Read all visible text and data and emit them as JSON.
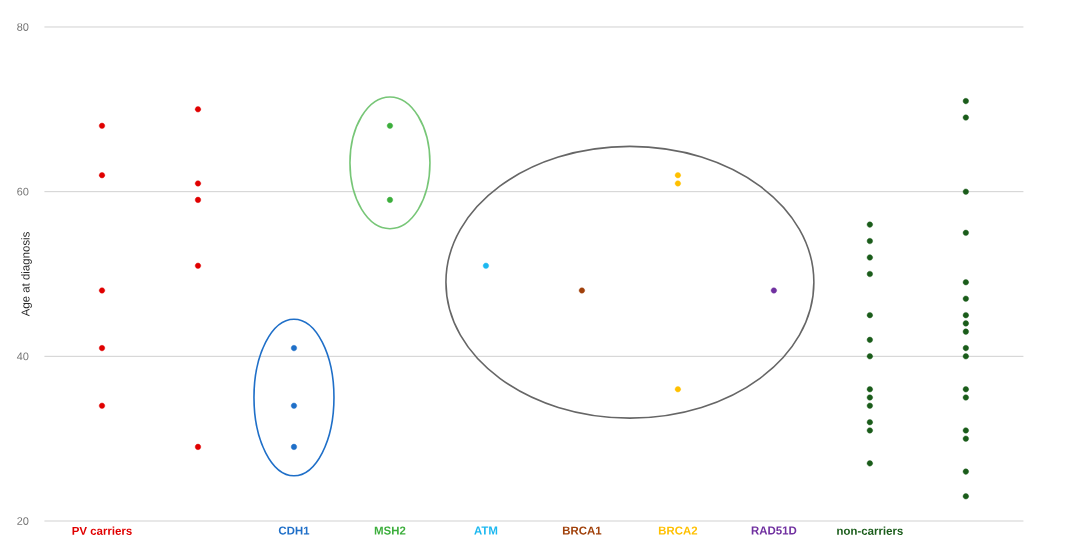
{
  "chart_data": {
    "type": "scatter",
    "ylabel": "Age at diagnosis",
    "categories": [
      "PV carriers",
      null,
      "CDH1",
      "MSH2",
      "ATM",
      "BRCA1",
      "BRCA2",
      "RAD51D",
      "non-carriers",
      null
    ],
    "ylim": [
      20,
      80
    ],
    "yticks": [
      20,
      40,
      60,
      80
    ],
    "grid": "y",
    "marker": "circle",
    "series": [
      {
        "colors": [
          "#e00000",
          "#e00000",
          "#1f6fc8",
          "#3cae3c",
          "#1cb8f0",
          "#a0400a",
          "#ffc000",
          "#7030a0",
          "#1a5c1a",
          "#1a5c1a"
        ],
        "values": [
          68,
          70,
          41,
          68,
          51,
          48,
          62,
          48,
          56,
          71
        ]
      },
      {
        "colors": [
          "#e00000",
          "#e00000",
          "#1f6fc8",
          "#3cae3c",
          "#1cb8f0",
          "#a0400a",
          "#ffc000",
          "#7030a0",
          "#1a5c1a",
          "#1a5c1a"
        ],
        "values": [
          62,
          61,
          34,
          59,
          null,
          null,
          61,
          null,
          54,
          69
        ]
      },
      {
        "colors": [
          "#e00000",
          "#e00000",
          "#1f6fc8",
          "#3cae3c",
          "#1cb8f0",
          "#a0400a",
          "#ffc000",
          "#7030a0",
          "#1a5c1a",
          "#1a5c1a"
        ],
        "values": [
          48,
          59,
          29,
          null,
          null,
          null,
          36,
          null,
          52,
          60
        ]
      },
      {
        "colors": [
          "#e00000",
          "#e00000",
          "#1f6fc8",
          "#3cae3c",
          "#1cb8f0",
          "#a0400a",
          "#ffc000",
          "#7030a0",
          "#1a5c1a",
          "#1a5c1a"
        ],
        "values": [
          41,
          51,
          null,
          null,
          null,
          null,
          null,
          null,
          50,
          55
        ]
      },
      {
        "colors": [
          "#e00000",
          "#e00000",
          "#1f6fc8",
          "#3cae3c",
          "#1cb8f0",
          "#a0400a",
          "#ffc000",
          "#7030a0",
          "#1a5c1a",
          "#1a5c1a"
        ],
        "values": [
          34,
          29,
          null,
          null,
          null,
          null,
          null,
          null,
          45,
          49
        ]
      },
      {
        "colors": [
          "#e00000",
          "#e00000",
          "#1f6fc8",
          "#3cae3c",
          "#1cb8f0",
          "#a0400a",
          "#ffc000",
          "#7030a0",
          "#1a5c1a",
          "#1a5c1a"
        ],
        "values": [
          null,
          null,
          null,
          null,
          null,
          null,
          null,
          null,
          42,
          47
        ]
      },
      {
        "colors": [
          "#e00000",
          "#e00000",
          "#1f6fc8",
          "#3cae3c",
          "#1cb8f0",
          "#a0400a",
          "#ffc000",
          "#7030a0",
          "#1a5c1a",
          "#1a5c1a"
        ],
        "values": [
          null,
          null,
          null,
          null,
          null,
          null,
          null,
          null,
          null,
          45
        ]
      },
      {
        "colors": [
          "#e00000",
          "#e00000",
          "#1f6fc8",
          "#3cae3c",
          "#1cb8f0",
          "#a0400a",
          "#ffc000",
          "#7030a0",
          "#1a5c1a",
          "#1a5c1a"
        ],
        "values": [
          null,
          null,
          null,
          null,
          null,
          null,
          null,
          null,
          40,
          44
        ]
      },
      {
        "colors": [
          "#e00000",
          "#e00000",
          "#1f6fc8",
          "#3cae3c",
          "#1cb8f0",
          "#a0400a",
          "#ffc000",
          "#7030a0",
          "#1a5c1a",
          "#1a5c1a"
        ],
        "values": [
          null,
          null,
          null,
          null,
          null,
          null,
          null,
          null,
          36,
          43
        ]
      },
      {
        "colors": [
          "#e00000",
          "#e00000",
          "#1f6fc8",
          "#3cae3c",
          "#1cb8f0",
          "#a0400a",
          "#ffc000",
          "#7030a0",
          "#1a5c1a",
          "#1a5c1a"
        ],
        "values": [
          null,
          null,
          null,
          null,
          null,
          null,
          null,
          null,
          35,
          41
        ]
      },
      {
        "colors": [
          "#e00000",
          "#e00000",
          "#1f6fc8",
          "#3cae3c",
          "#1cb8f0",
          "#a0400a",
          "#ffc000",
          "#7030a0",
          "#1a5c1a",
          "#1a5c1a"
        ],
        "values": [
          null,
          null,
          null,
          null,
          null,
          null,
          null,
          null,
          34,
          40
        ]
      },
      {
        "colors": [
          "#e00000",
          "#e00000",
          "#1f6fc8",
          "#3cae3c",
          "#1cb8f0",
          "#a0400a",
          "#ffc000",
          "#7030a0",
          "#1a5c1a",
          "#1a5c1a"
        ],
        "values": [
          null,
          null,
          null,
          null,
          null,
          null,
          null,
          null,
          32,
          36
        ]
      },
      {
        "colors": [
          "#e00000",
          "#e00000",
          "#1f6fc8",
          "#3cae3c",
          "#1cb8f0",
          "#a0400a",
          "#ffc000",
          "#7030a0",
          "#1a5c1a",
          "#1a5c1a"
        ],
        "values": [
          null,
          null,
          null,
          null,
          null,
          null,
          null,
          null,
          31,
          35
        ]
      },
      {
        "colors": [
          "#e00000",
          "#e00000",
          "#1f6fc8",
          "#3cae3c",
          "#1cb8f0",
          "#a0400a",
          "#ffc000",
          "#7030a0",
          "#1a5c1a",
          "#1a5c1a"
        ],
        "values": [
          null,
          null,
          null,
          null,
          null,
          null,
          null,
          null,
          27,
          31
        ]
      },
      {
        "colors": [
          "#e00000",
          "#e00000",
          "#1f6fc8",
          "#3cae3c",
          "#1cb8f0",
          "#a0400a",
          "#ffc000",
          "#7030a0",
          "#1a5c1a",
          "#1a5c1a"
        ],
        "values": [
          null,
          null,
          null,
          null,
          null,
          null,
          null,
          null,
          null,
          30
        ]
      },
      {
        "colors": [
          "#e00000",
          "#e00000",
          "#1f6fc8",
          "#3cae3c",
          "#1cb8f0",
          "#a0400a",
          "#ffc000",
          "#7030a0",
          "#1a5c1a",
          "#1a5c1a"
        ],
        "values": [
          null,
          null,
          null,
          null,
          null,
          null,
          null,
          null,
          null,
          26
        ]
      },
      {
        "colors": [
          "#e00000",
          "#e00000",
          "#1f6fc8",
          "#3cae3c",
          "#1cb8f0",
          "#a0400a",
          "#ffc000",
          "#7030a0",
          "#1a5c1a",
          "#1a5c1a"
        ],
        "values": [
          null,
          null,
          null,
          null,
          null,
          null,
          null,
          null,
          null,
          23
        ]
      }
    ]
  }
}
